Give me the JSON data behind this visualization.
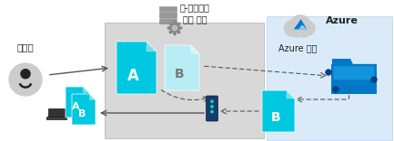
{
  "bg_color": "#ffffff",
  "panel_bg": "#d8d8d8",
  "azure_bg": "#daeaf8",
  "title_onprem": "온-프레미스\n파일 공유",
  "title_azure": "Azure",
  "subtitle_azure": "Azure 파일",
  "label_user": "사용자",
  "label_A": "A",
  "label_B": "B",
  "cyan_color": "#00c8e0",
  "cyan_light": "#b8ecf5",
  "arrow_color": "#555555",
  "person_bg": "#cccccc",
  "person_fg": "#222222",
  "server_color": "#999999",
  "cloud_color": "#cccccc",
  "azure_blue": "#0078d4",
  "folder_dark": "#0058a0",
  "folder_mid": "#0078c8",
  "folder_light": "#20a8e8",
  "sync_color": "#1a3a6a",
  "text_color": "#222222"
}
